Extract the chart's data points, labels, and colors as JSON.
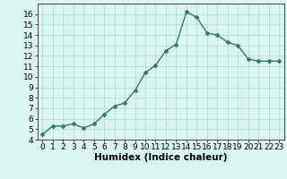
{
  "x": [
    0,
    1,
    2,
    3,
    4,
    5,
    6,
    7,
    8,
    9,
    10,
    11,
    12,
    13,
    14,
    15,
    16,
    17,
    18,
    19,
    20,
    21,
    22,
    23
  ],
  "y": [
    4.5,
    5.3,
    5.3,
    5.5,
    5.1,
    5.5,
    6.4,
    7.2,
    7.5,
    8.7,
    10.4,
    11.1,
    12.5,
    13.1,
    16.2,
    15.7,
    14.2,
    14.0,
    13.3,
    13.0,
    11.7,
    11.5,
    11.5,
    11.5
  ],
  "xlabel": "Humidex (Indice chaleur)",
  "ylim": [
    4,
    17
  ],
  "xlim": [
    -0.5,
    23.5
  ],
  "yticks": [
    4,
    5,
    6,
    7,
    8,
    9,
    10,
    11,
    12,
    13,
    14,
    15,
    16
  ],
  "xticks": [
    0,
    1,
    2,
    3,
    4,
    5,
    6,
    7,
    8,
    9,
    10,
    11,
    12,
    13,
    14,
    15,
    16,
    17,
    18,
    19,
    20,
    21,
    22,
    23
  ],
  "line_color": "#2e7d6e",
  "marker": "D",
  "marker_size": 2.0,
  "line_width": 1.0,
  "bg_color": "#d8f5f0",
  "grid_color": "#b8ddd8",
  "xlabel_fontsize": 7.5,
  "tick_fontsize": 6.5
}
